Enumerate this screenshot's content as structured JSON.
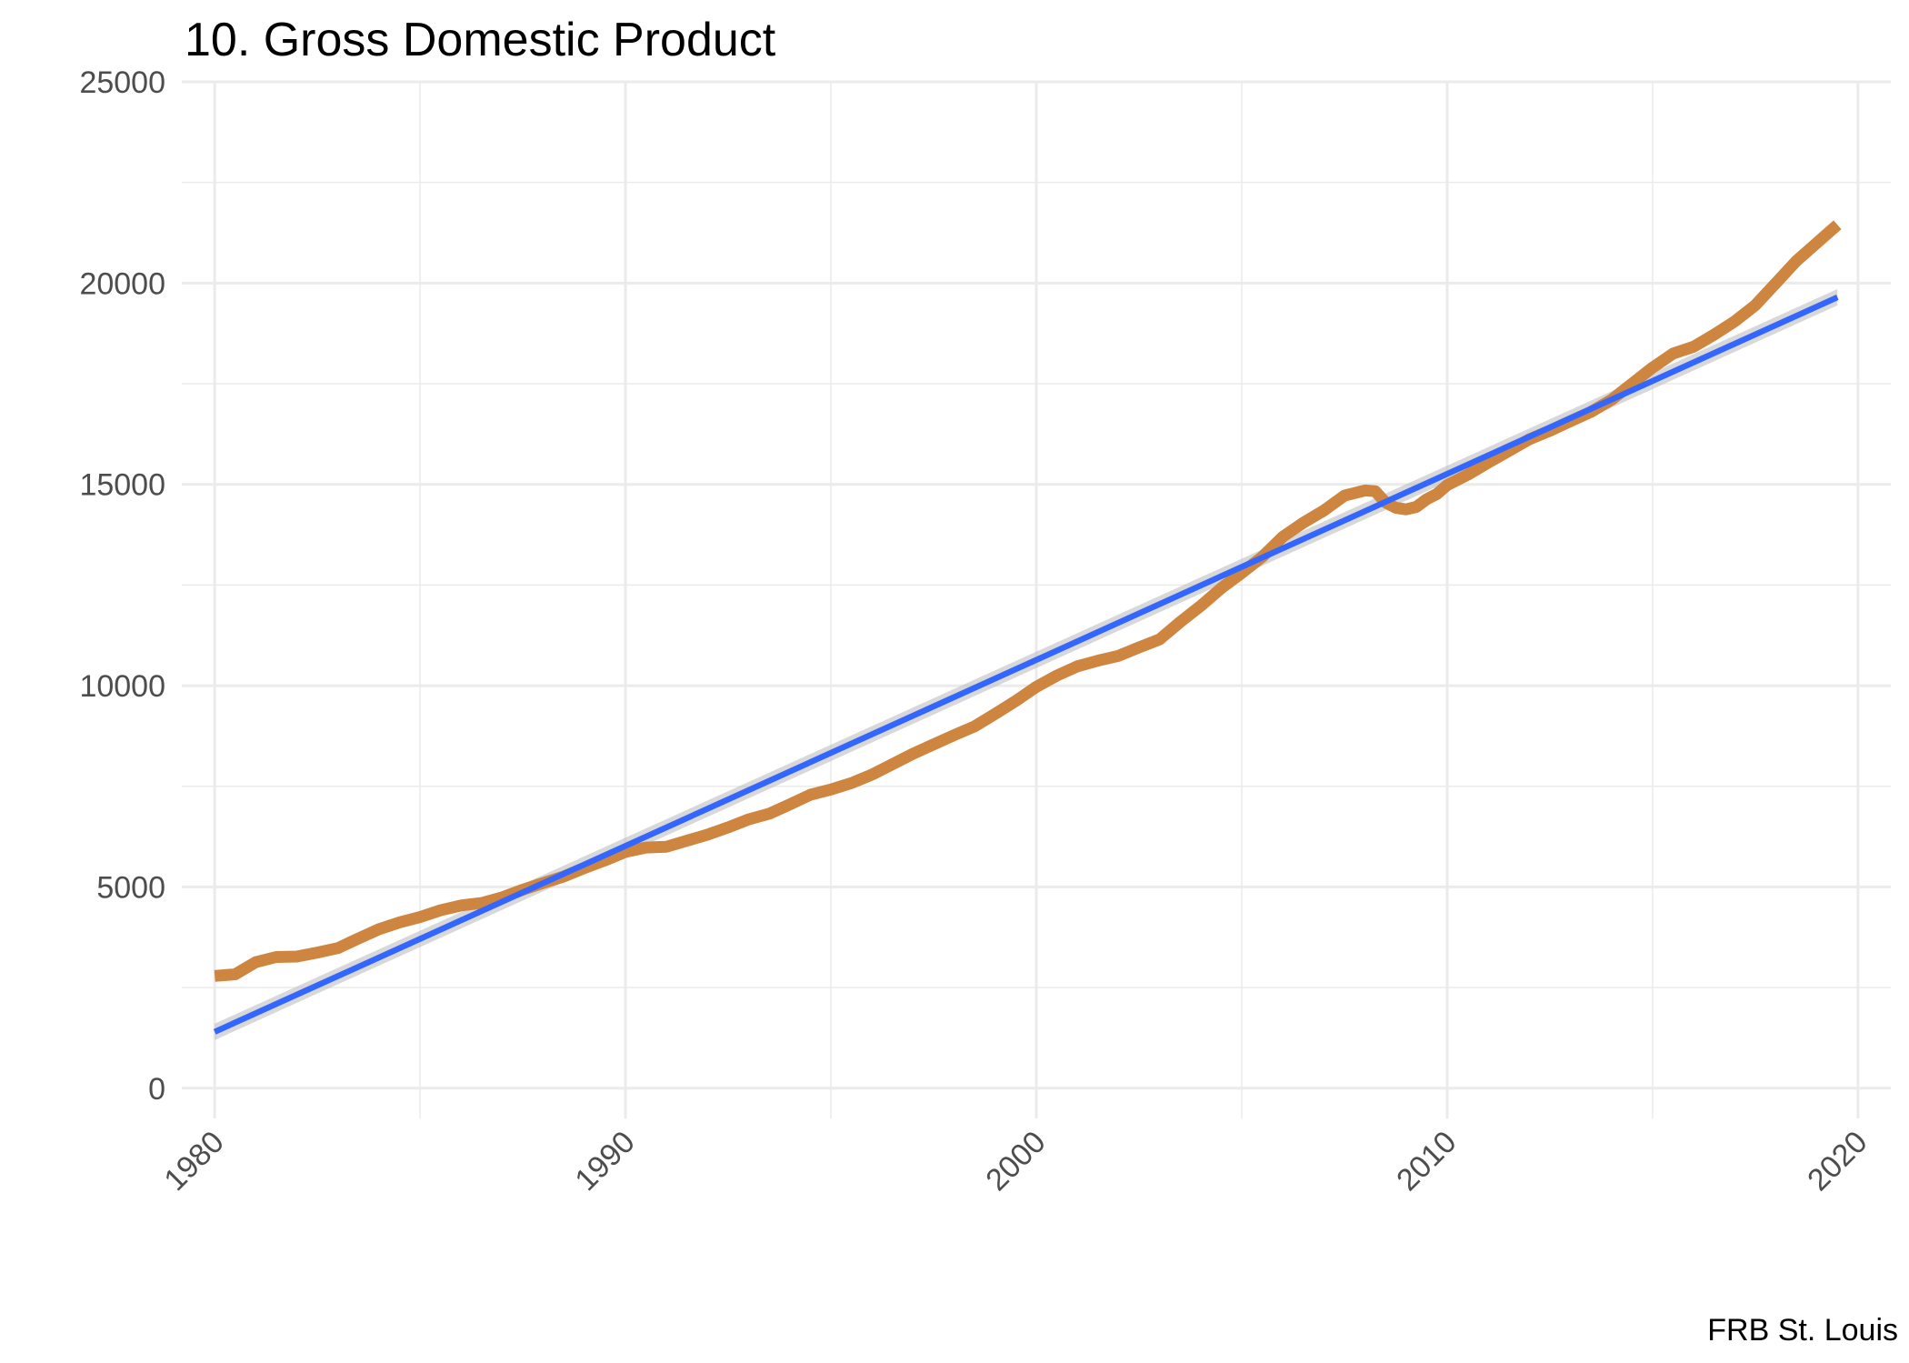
{
  "title": "10. Gross Domestic Product",
  "caption": "FRB St. Louis",
  "colors": {
    "gdp": "#CD853F",
    "trend": "#3366FF",
    "trend_band": "#BEBEBE",
    "grid": "#EBEBEB",
    "text": "#4D4D4D"
  },
  "chart_data": {
    "type": "line",
    "title": "10. Gross Domestic Product",
    "xlabel": "",
    "ylabel": "",
    "xlim": [
      1979.2,
      2020.8
    ],
    "ylim": [
      -750,
      25000
    ],
    "x_ticks": [
      1980,
      1990,
      2000,
      2010,
      2020
    ],
    "y_ticks": [
      0,
      5000,
      10000,
      15000,
      20000,
      25000
    ],
    "grid": true,
    "legend": "none",
    "series": [
      {
        "role": "gdp",
        "x": [
          1980,
          1980.5,
          1981,
          1981.5,
          1982,
          1982.5,
          1983,
          1983.5,
          1984,
          1984.5,
          1985,
          1985.5,
          1986,
          1986.5,
          1987,
          1987.5,
          1988,
          1988.5,
          1989,
          1989.5,
          1990,
          1990.5,
          1991,
          1991.5,
          1992,
          1992.5,
          1993,
          1993.5,
          1994,
          1994.5,
          1995,
          1995.5,
          1996,
          1996.5,
          1997,
          1997.5,
          1998,
          1998.5,
          1999,
          1999.5,
          2000,
          2000.5,
          2001,
          2001.5,
          2002,
          2002.5,
          2003,
          2003.5,
          2004,
          2004.5,
          2005,
          2005.5,
          2006,
          2006.5,
          2007,
          2007.5,
          2008,
          2008.25,
          2008.5,
          2008.75,
          2009,
          2009.25,
          2009.5,
          2009.75,
          2010,
          2010.5,
          2011,
          2011.5,
          2012,
          2012.5,
          2013,
          2013.5,
          2014,
          2014.5,
          2015,
          2015.5,
          2016,
          2016.5,
          2017,
          2017.5,
          2018,
          2018.5,
          2019,
          2019.5
        ],
        "y": [
          2790,
          2830,
          3130,
          3260,
          3270,
          3370,
          3480,
          3720,
          3950,
          4120,
          4250,
          4420,
          4540,
          4600,
          4740,
          4930,
          5100,
          5260,
          5470,
          5660,
          5870,
          5980,
          6000,
          6150,
          6300,
          6480,
          6680,
          6820,
          7050,
          7290,
          7420,
          7580,
          7790,
          8050,
          8310,
          8540,
          8770,
          8990,
          9300,
          9620,
          9970,
          10250,
          10480,
          10620,
          10740,
          10950,
          11150,
          11580,
          11980,
          12420,
          12800,
          13200,
          13700,
          14050,
          14350,
          14720,
          14850,
          14830,
          14550,
          14420,
          14380,
          14440,
          14630,
          14760,
          14980,
          15240,
          15540,
          15830,
          16120,
          16330,
          16570,
          16800,
          17100,
          17500,
          17900,
          18250,
          18420,
          18720,
          19050,
          19450,
          20000,
          20550,
          21000,
          21450
        ]
      },
      {
        "role": "trend",
        "x": [
          1980,
          2019.5
        ],
        "y": [
          1400,
          19650
        ]
      }
    ]
  }
}
